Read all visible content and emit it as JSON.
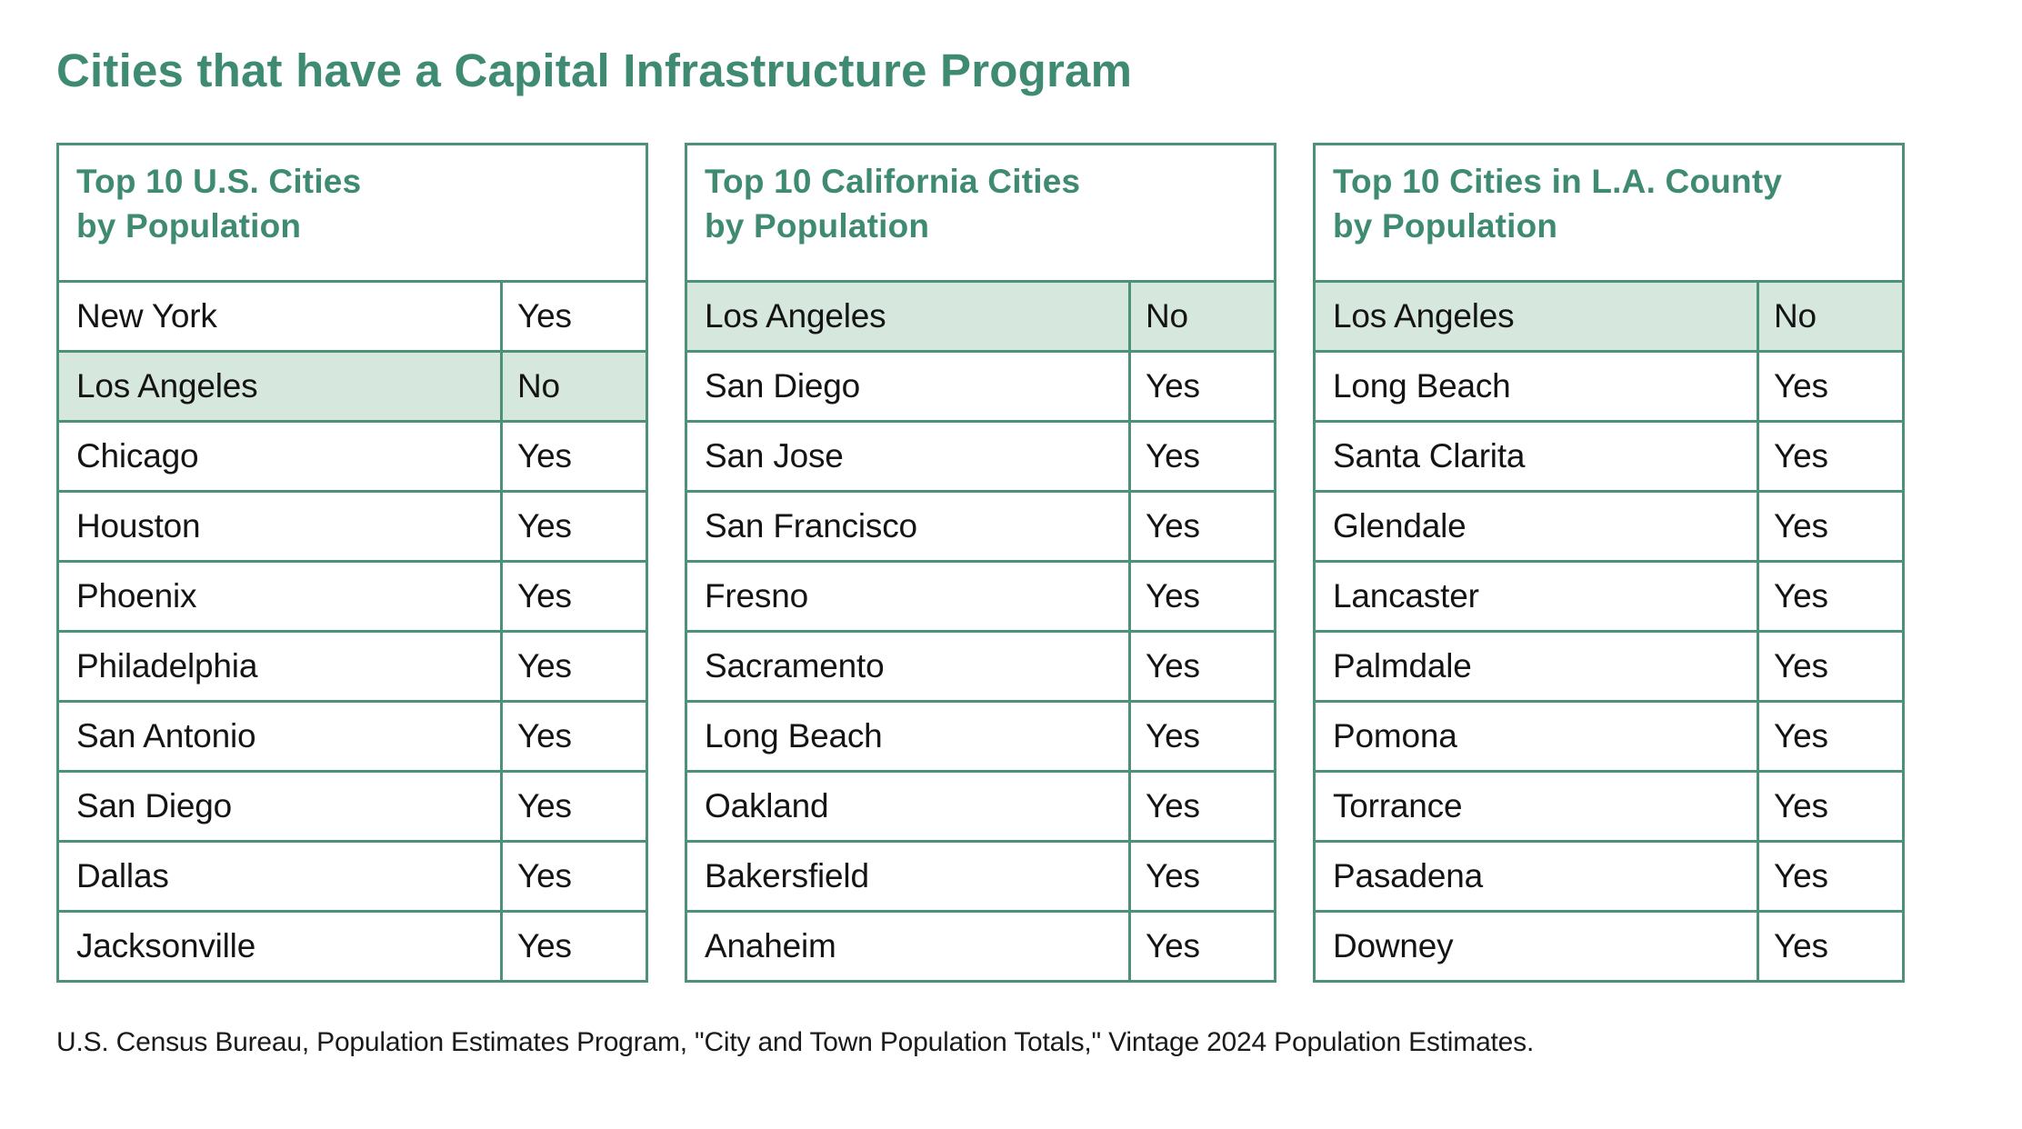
{
  "title": "Cities that have a Capital Infrastructure Program",
  "source_note": "U.S. Census Bureau, Population Estimates Program, \"City and Town Population Totals,\" Vintage 2024 Population Estimates.",
  "colors": {
    "accent_green": "#3F8A72",
    "border_green": "#4E9179",
    "highlight_green": "#D6E7DD",
    "text": "#141414"
  },
  "tables": [
    {
      "title_line1": "Top 10 U.S. Cities",
      "title_line2": "by Population",
      "rows": [
        {
          "city": "New York",
          "answer": "Yes",
          "highlight": false
        },
        {
          "city": "Los Angeles",
          "answer": "No",
          "highlight": true
        },
        {
          "city": "Chicago",
          "answer": "Yes",
          "highlight": false
        },
        {
          "city": "Houston",
          "answer": "Yes",
          "highlight": false
        },
        {
          "city": "Phoenix",
          "answer": "Yes",
          "highlight": false
        },
        {
          "city": "Philadelphia",
          "answer": "Yes",
          "highlight": false
        },
        {
          "city": "San Antonio",
          "answer": "Yes",
          "highlight": false
        },
        {
          "city": "San Diego",
          "answer": "Yes",
          "highlight": false
        },
        {
          "city": "Dallas",
          "answer": "Yes",
          "highlight": false
        },
        {
          "city": "Jacksonville",
          "answer": "Yes",
          "highlight": false
        }
      ]
    },
    {
      "title_line1": "Top 10 California Cities",
      "title_line2": "by Population",
      "rows": [
        {
          "city": "Los Angeles",
          "answer": "No",
          "highlight": true
        },
        {
          "city": "San Diego",
          "answer": "Yes",
          "highlight": false
        },
        {
          "city": "San Jose",
          "answer": "Yes",
          "highlight": false
        },
        {
          "city": "San Francisco",
          "answer": "Yes",
          "highlight": false
        },
        {
          "city": "Fresno",
          "answer": "Yes",
          "highlight": false
        },
        {
          "city": "Sacramento",
          "answer": "Yes",
          "highlight": false
        },
        {
          "city": "Long Beach",
          "answer": "Yes",
          "highlight": false
        },
        {
          "city": "Oakland",
          "answer": "Yes",
          "highlight": false
        },
        {
          "city": "Bakersfield",
          "answer": "Yes",
          "highlight": false
        },
        {
          "city": "Anaheim",
          "answer": "Yes",
          "highlight": false
        }
      ]
    },
    {
      "title_line1": "Top 10 Cities in L.A. County",
      "title_line2": "by Population",
      "rows": [
        {
          "city": "Los Angeles",
          "answer": "No",
          "highlight": true
        },
        {
          "city": "Long Beach",
          "answer": "Yes",
          "highlight": false
        },
        {
          "city": "Santa Clarita",
          "answer": "Yes",
          "highlight": false
        },
        {
          "city": "Glendale",
          "answer": "Yes",
          "highlight": false
        },
        {
          "city": "Lancaster",
          "answer": "Yes",
          "highlight": false
        },
        {
          "city": "Palmdale",
          "answer": "Yes",
          "highlight": false
        },
        {
          "city": "Pomona",
          "answer": "Yes",
          "highlight": false
        },
        {
          "city": "Torrance",
          "answer": "Yes",
          "highlight": false
        },
        {
          "city": "Pasadena",
          "answer": "Yes",
          "highlight": false
        },
        {
          "city": "Downey",
          "answer": "Yes",
          "highlight": false
        }
      ]
    }
  ],
  "chart_data": [
    {
      "type": "table",
      "title": "Top 10 U.S. Cities by Population",
      "rows": [
        [
          "New York",
          "Yes"
        ],
        [
          "Los Angeles",
          "No"
        ],
        [
          "Chicago",
          "Yes"
        ],
        [
          "Houston",
          "Yes"
        ],
        [
          "Phoenix",
          "Yes"
        ],
        [
          "Philadelphia",
          "Yes"
        ],
        [
          "San Antonio",
          "Yes"
        ],
        [
          "San Diego",
          "Yes"
        ],
        [
          "Dallas",
          "Yes"
        ],
        [
          "Jacksonville",
          "Yes"
        ]
      ],
      "highlighted_row": "Los Angeles"
    },
    {
      "type": "table",
      "title": "Top 10 California Cities by Population",
      "rows": [
        [
          "Los Angeles",
          "No"
        ],
        [
          "San Diego",
          "Yes"
        ],
        [
          "San Jose",
          "Yes"
        ],
        [
          "San Francisco",
          "Yes"
        ],
        [
          "Fresno",
          "Yes"
        ],
        [
          "Sacramento",
          "Yes"
        ],
        [
          "Long Beach",
          "Yes"
        ],
        [
          "Oakland",
          "Yes"
        ],
        [
          "Bakersfield",
          "Yes"
        ],
        [
          "Anaheim",
          "Yes"
        ]
      ],
      "highlighted_row": "Los Angeles"
    },
    {
      "type": "table",
      "title": "Top 10 Cities in L.A. County by Population",
      "rows": [
        [
          "Los Angeles",
          "No"
        ],
        [
          "Long Beach",
          "Yes"
        ],
        [
          "Santa Clarita",
          "Yes"
        ],
        [
          "Glendale",
          "Yes"
        ],
        [
          "Lancaster",
          "Yes"
        ],
        [
          "Palmdale",
          "Yes"
        ],
        [
          "Pomona",
          "Yes"
        ],
        [
          "Torrance",
          "Yes"
        ],
        [
          "Pasadena",
          "Yes"
        ],
        [
          "Downey",
          "Yes"
        ]
      ],
      "highlighted_row": "Los Angeles"
    }
  ]
}
